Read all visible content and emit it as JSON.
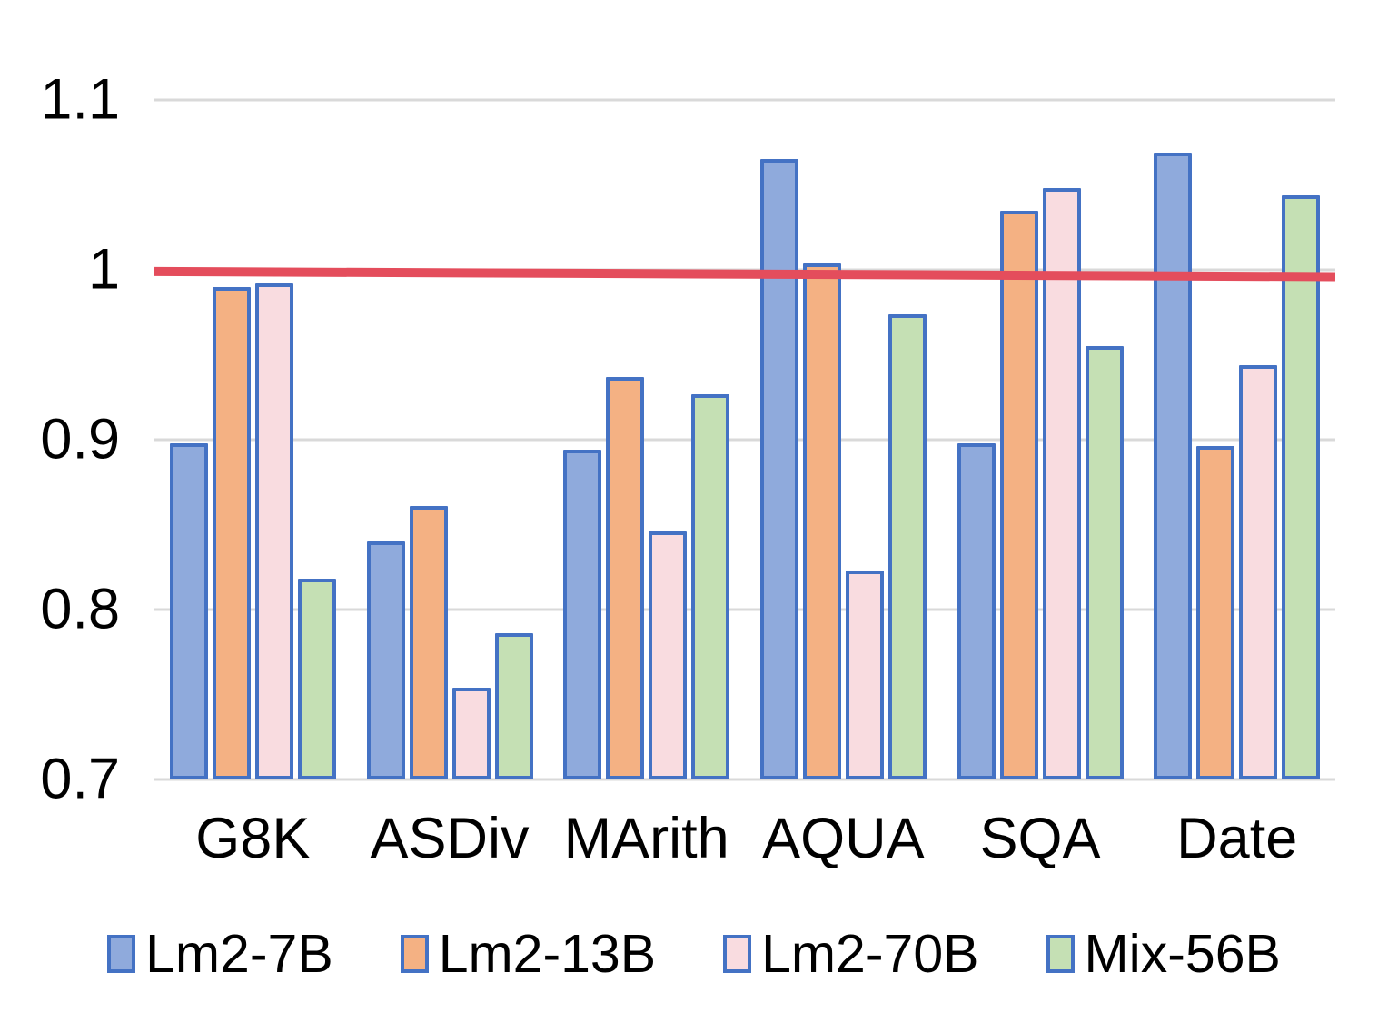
{
  "chart_data": {
    "type": "bar",
    "title": "",
    "xlabel": "",
    "ylabel": "",
    "categories": [
      "G8K",
      "ASDiv",
      "MArith",
      "AQUA",
      "SQA",
      "Date"
    ],
    "series": [
      {
        "name": "Lm2-7B",
        "fill": "#8FAADC",
        "values": [
          0.898,
          0.84,
          0.894,
          1.065,
          0.898,
          1.069
        ]
      },
      {
        "name": "Lm2-13B",
        "fill": "#F4B183",
        "values": [
          0.99,
          0.861,
          0.937,
          1.004,
          1.035,
          0.896
        ]
      },
      {
        "name": "Lm2-70B",
        "fill": "#F9DCE0",
        "values": [
          0.992,
          0.754,
          0.846,
          0.823,
          1.048,
          0.944
        ]
      },
      {
        "name": "Mix-56B",
        "fill": "#C5E0B4",
        "values": [
          0.818,
          0.786,
          0.927,
          0.974,
          0.955,
          1.044
        ]
      }
    ],
    "bar_border_color": "#4472C4",
    "y_ticks": [
      "1.1",
      "1",
      "0.9",
      "0.8",
      "0.7"
    ],
    "y_tick_values": [
      1.1,
      1.0,
      0.9,
      0.8,
      0.7
    ],
    "ylim": [
      0.7,
      1.1
    ],
    "grid": true,
    "gridline_color": "#D9D9D9",
    "reference_line": {
      "color": "#E44D5C",
      "value_left": 0.999,
      "value_right": 0.996,
      "thickness": 10
    },
    "legend_position": "bottom"
  }
}
